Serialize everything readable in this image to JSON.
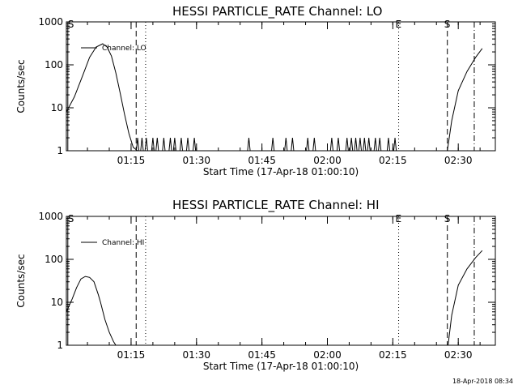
{
  "chart_data": [
    {
      "type": "line",
      "title": "HESSI PARTICLE_RATE Channel: LO",
      "xlabel": "Start Time (17-Apr-18 01:00:10)",
      "ylabel": "Counts/sec",
      "yscale": "log",
      "xlim": [
        "01:00:10",
        "02:38:30"
      ],
      "ylim": [
        1,
        1000
      ],
      "x_ticks": [
        "01:15",
        "01:30",
        "01:45",
        "02:00",
        "02:15",
        "02:30"
      ],
      "y_ticks": [
        "1",
        "10",
        "100",
        "1000"
      ],
      "legend": "top-left",
      "grid": false,
      "series": [
        {
          "name": "Channel: LO",
          "line_style": "solid",
          "segments": [
            {
              "x": [
                "01:00:10",
                "01:02:00",
                "01:04:00",
                "01:05:30",
                "01:07:00",
                "01:08:30",
                "01:09:30",
                "01:10:30",
                "01:11:30",
                "01:12:30",
                "01:13:30",
                "01:14:30",
                "01:15:30",
                "01:16:30"
              ],
              "y": [
                8,
                18,
                60,
                150,
                260,
                310,
                260,
                160,
                65,
                22,
                7,
                2.5,
                1.2,
                1
              ]
            },
            {
              "x": [
                "02:27:30",
                "02:28:30",
                "02:30:00",
                "02:32:00",
                "02:34:00",
                "02:35:30"
              ],
              "y": [
                1,
                5,
                25,
                70,
                150,
                240
              ]
            }
          ],
          "spikes_to_2": [
            "01:16:30",
            "01:17:30",
            "01:18:30",
            "01:20:00",
            "01:21:00",
            "01:22:30",
            "01:24:00",
            "01:25:00",
            "01:26:30",
            "01:28:00",
            "01:29:30",
            "01:42:00",
            "01:47:30",
            "01:50:30",
            "01:52:00",
            "01:55:30",
            "01:57:00",
            "02:01:00",
            "02:02:30",
            "02:04:30",
            "02:05:30",
            "02:06:30",
            "02:07:30",
            "02:08:30",
            "02:09:30",
            "02:11:00",
            "02:12:00",
            "02:14:00",
            "02:15:30"
          ]
        }
      ],
      "markers": [
        {
          "x": "01:00:30",
          "style": "solid",
          "label": "S"
        },
        {
          "x": "01:16:10",
          "style": "dashed",
          "label": ""
        },
        {
          "x": "01:18:20",
          "style": "dotted",
          "label": ""
        },
        {
          "x": "02:16:20",
          "style": "dotted",
          "label": "E"
        },
        {
          "x": "02:27:30",
          "style": "dashed",
          "label": "S"
        },
        {
          "x": "02:33:40",
          "style": "dashdot",
          "label": ""
        }
      ]
    },
    {
      "type": "line",
      "title": "HESSI PARTICLE_RATE Channel: HI",
      "xlabel": "Start Time (17-Apr-18 01:00:10)",
      "ylabel": "Counts/sec",
      "yscale": "log",
      "xlim": [
        "01:00:10",
        "02:38:30"
      ],
      "ylim": [
        1,
        1000
      ],
      "x_ticks": [
        "01:15",
        "01:30",
        "01:45",
        "02:00",
        "02:15",
        "02:30"
      ],
      "y_ticks": [
        "1",
        "10",
        "100",
        "1000"
      ],
      "legend": "top-left",
      "grid": false,
      "series": [
        {
          "name": "Channel: HI",
          "line_style": "solid",
          "segments": [
            {
              "x": [
                "01:00:10",
                "01:01:30",
                "01:02:30",
                "01:03:30",
                "01:04:30",
                "01:05:30",
                "01:06:30",
                "01:07:30",
                "01:08:00",
                "01:09:00",
                "01:10:00",
                "01:11:00",
                "01:11:30"
              ],
              "y": [
                6,
                12,
                22,
                35,
                40,
                38,
                30,
                15,
                10,
                4,
                2,
                1.2,
                1
              ]
            },
            {
              "x": [
                "02:27:40",
                "02:28:30",
                "02:30:00",
                "02:32:00",
                "02:34:00",
                "02:35:30"
              ],
              "y": [
                1,
                5,
                25,
                60,
                110,
                160
              ]
            }
          ],
          "spikes_to_2": []
        }
      ],
      "markers": [
        {
          "x": "01:00:30",
          "style": "solid",
          "label": "S"
        },
        {
          "x": "01:16:10",
          "style": "dashed",
          "label": ""
        },
        {
          "x": "01:18:20",
          "style": "dotted",
          "label": ""
        },
        {
          "x": "02:16:20",
          "style": "dotted",
          "label": "E"
        },
        {
          "x": "02:27:30",
          "style": "dashed",
          "label": "S"
        },
        {
          "x": "02:33:40",
          "style": "dashdot",
          "label": ""
        }
      ]
    }
  ],
  "footer": {
    "timestamp": "18-Apr-2018 08:34"
  }
}
